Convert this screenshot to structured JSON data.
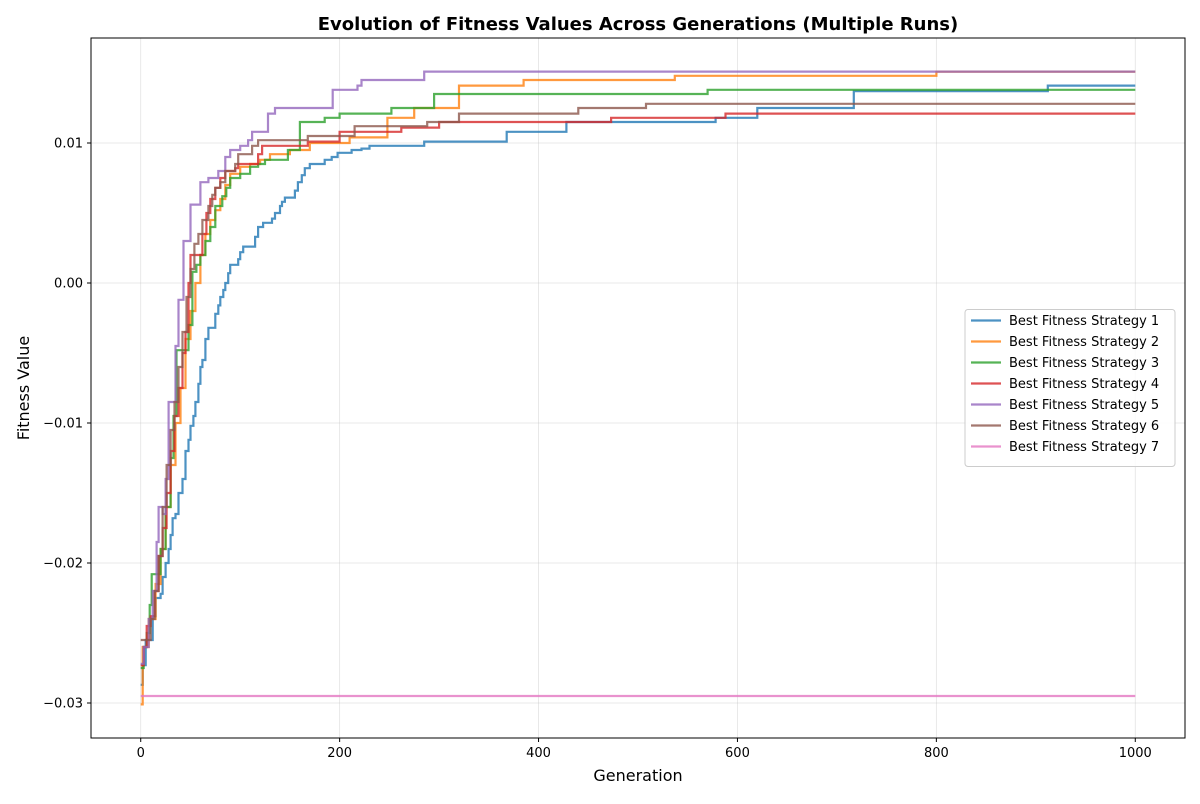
{
  "chart_data": {
    "type": "line",
    "title": "Evolution of Fitness Values Across Generations (Multiple Runs)",
    "xlabel": "Generation",
    "ylabel": "Fitness Value",
    "xlim": [
      -50,
      1050
    ],
    "ylim": [
      -0.0325,
      0.0175
    ],
    "xticks": [
      0,
      200,
      400,
      600,
      800,
      1000
    ],
    "xtick_labels": [
      "0",
      "200",
      "400",
      "600",
      "800",
      "1000"
    ],
    "yticks": [
      -0.03,
      -0.02,
      -0.01,
      0.0,
      0.01
    ],
    "ytick_labels": [
      "−0.03",
      "−0.02",
      "−0.01",
      "0.00",
      "0.01"
    ],
    "grid": true,
    "legend_position": "center-right",
    "series": [
      {
        "name": "Best Fitness Strategy 1",
        "color": "#1f77b4",
        "points": [
          [
            0,
            -0.0287
          ],
          [
            2,
            -0.0273
          ],
          [
            5,
            -0.0255
          ],
          [
            10,
            -0.0255
          ],
          [
            12,
            -0.0238
          ],
          [
            15,
            -0.0225
          ],
          [
            20,
            -0.0222
          ],
          [
            22,
            -0.021
          ],
          [
            25,
            -0.02
          ],
          [
            28,
            -0.019
          ],
          [
            30,
            -0.018
          ],
          [
            32,
            -0.0168
          ],
          [
            35,
            -0.0165
          ],
          [
            38,
            -0.015
          ],
          [
            42,
            -0.014
          ],
          [
            45,
            -0.012
          ],
          [
            48,
            -0.0112
          ],
          [
            50,
            -0.0102
          ],
          [
            53,
            -0.0095
          ],
          [
            55,
            -0.0085
          ],
          [
            58,
            -0.0072
          ],
          [
            60,
            -0.006
          ],
          [
            62,
            -0.0055
          ],
          [
            65,
            -0.004
          ],
          [
            68,
            -0.0032
          ],
          [
            72,
            -0.0032
          ],
          [
            75,
            -0.0022
          ],
          [
            78,
            -0.0016
          ],
          [
            80,
            -0.001
          ],
          [
            83,
            -0.0005
          ],
          [
            85,
            0.0
          ],
          [
            88,
            0.0007
          ],
          [
            90,
            0.0013
          ],
          [
            98,
            0.0017
          ],
          [
            100,
            0.0022
          ],
          [
            103,
            0.0026
          ],
          [
            112,
            0.0026
          ],
          [
            115,
            0.0033
          ],
          [
            118,
            0.004
          ],
          [
            123,
            0.0043
          ],
          [
            132,
            0.0046
          ],
          [
            135,
            0.005
          ],
          [
            140,
            0.0055
          ],
          [
            142,
            0.0058
          ],
          [
            145,
            0.0061
          ],
          [
            152,
            0.0061
          ],
          [
            155,
            0.0066
          ],
          [
            158,
            0.0072
          ],
          [
            162,
            0.0077
          ],
          [
            165,
            0.0082
          ],
          [
            170,
            0.0085
          ],
          [
            182,
            0.0085
          ],
          [
            185,
            0.0088
          ],
          [
            192,
            0.009
          ],
          [
            198,
            0.0093
          ],
          [
            212,
            0.0095
          ],
          [
            222,
            0.0096
          ],
          [
            230,
            0.0098
          ],
          [
            285,
            0.0101
          ],
          [
            365,
            0.0101
          ],
          [
            368,
            0.0108
          ],
          [
            425,
            0.0108
          ],
          [
            428,
            0.0115
          ],
          [
            575,
            0.0115
          ],
          [
            578,
            0.0118
          ],
          [
            618,
            0.0118
          ],
          [
            620,
            0.0125
          ],
          [
            715,
            0.0125
          ],
          [
            717,
            0.0137
          ],
          [
            910,
            0.0137
          ],
          [
            912,
            0.0141
          ],
          [
            1000,
            0.0141
          ]
        ]
      },
      {
        "name": "Best Fitness Strategy 2",
        "color": "#ff7f0e",
        "points": [
          [
            0,
            -0.0301
          ],
          [
            2,
            -0.026
          ],
          [
            8,
            -0.024
          ],
          [
            15,
            -0.0215
          ],
          [
            20,
            -0.019
          ],
          [
            25,
            -0.016
          ],
          [
            30,
            -0.013
          ],
          [
            35,
            -0.01
          ],
          [
            40,
            -0.0075
          ],
          [
            45,
            -0.004
          ],
          [
            50,
            -0.002
          ],
          [
            55,
            0.0
          ],
          [
            60,
            0.002
          ],
          [
            65,
            0.0035
          ],
          [
            70,
            0.0045
          ],
          [
            75,
            0.0052
          ],
          [
            80,
            0.006
          ],
          [
            85,
            0.007
          ],
          [
            90,
            0.0078
          ],
          [
            100,
            0.0083
          ],
          [
            110,
            0.0085
          ],
          [
            120,
            0.0088
          ],
          [
            130,
            0.0092
          ],
          [
            140,
            0.0092
          ],
          [
            150,
            0.0095
          ],
          [
            165,
            0.0095
          ],
          [
            170,
            0.01
          ],
          [
            210,
            0.0104
          ],
          [
            245,
            0.0104
          ],
          [
            248,
            0.0118
          ],
          [
            272,
            0.0118
          ],
          [
            275,
            0.0125
          ],
          [
            318,
            0.0125
          ],
          [
            320,
            0.0141
          ],
          [
            383,
            0.0141
          ],
          [
            385,
            0.0145
          ],
          [
            535,
            0.0145
          ],
          [
            537,
            0.0148
          ],
          [
            798,
            0.0148
          ],
          [
            800,
            0.0151
          ],
          [
            1000,
            0.0151
          ]
        ]
      },
      {
        "name": "Best Fitness Strategy 3",
        "color": "#2ca02c",
        "points": [
          [
            0,
            -0.0275
          ],
          [
            3,
            -0.026
          ],
          [
            6,
            -0.025
          ],
          [
            9,
            -0.023
          ],
          [
            11,
            -0.0208
          ],
          [
            18,
            -0.0208
          ],
          [
            20,
            -0.019
          ],
          [
            25,
            -0.016
          ],
          [
            30,
            -0.0125
          ],
          [
            33,
            -0.0095
          ],
          [
            36,
            -0.0048
          ],
          [
            45,
            -0.0048
          ],
          [
            48,
            -0.003
          ],
          [
            52,
            0.0008
          ],
          [
            56,
            0.0013
          ],
          [
            60,
            0.002
          ],
          [
            65,
            0.003
          ],
          [
            70,
            0.004
          ],
          [
            75,
            0.0055
          ],
          [
            82,
            0.0062
          ],
          [
            86,
            0.0068
          ],
          [
            90,
            0.0075
          ],
          [
            100,
            0.0078
          ],
          [
            110,
            0.0083
          ],
          [
            118,
            0.0085
          ],
          [
            125,
            0.0088
          ],
          [
            145,
            0.0088
          ],
          [
            148,
            0.0095
          ],
          [
            158,
            0.0095
          ],
          [
            160,
            0.0115
          ],
          [
            182,
            0.0115
          ],
          [
            185,
            0.0118
          ],
          [
            198,
            0.0118
          ],
          [
            200,
            0.0121
          ],
          [
            250,
            0.0121
          ],
          [
            252,
            0.0125
          ],
          [
            292,
            0.0125
          ],
          [
            295,
            0.0135
          ],
          [
            568,
            0.0135
          ],
          [
            570,
            0.0138
          ],
          [
            1000,
            0.0138
          ]
        ]
      },
      {
        "name": "Best Fitness Strategy 4",
        "color": "#d62728",
        "points": [
          [
            0,
            -0.0273
          ],
          [
            3,
            -0.026
          ],
          [
            6,
            -0.0245
          ],
          [
            10,
            -0.0238
          ],
          [
            14,
            -0.022
          ],
          [
            18,
            -0.0195
          ],
          [
            22,
            -0.0175
          ],
          [
            26,
            -0.015
          ],
          [
            30,
            -0.012
          ],
          [
            34,
            -0.0095
          ],
          [
            38,
            -0.0075
          ],
          [
            42,
            -0.005
          ],
          [
            45,
            -0.0035
          ],
          [
            48,
            0.0
          ],
          [
            50,
            0.002
          ],
          [
            58,
            0.002
          ],
          [
            62,
            0.0035
          ],
          [
            66,
            0.005
          ],
          [
            70,
            0.006
          ],
          [
            75,
            0.0068
          ],
          [
            80,
            0.0075
          ],
          [
            85,
            0.008
          ],
          [
            95,
            0.0082
          ],
          [
            98,
            0.0085
          ],
          [
            115,
            0.0085
          ],
          [
            118,
            0.0092
          ],
          [
            122,
            0.0098
          ],
          [
            165,
            0.0098
          ],
          [
            168,
            0.0101
          ],
          [
            198,
            0.0101
          ],
          [
            200,
            0.0108
          ],
          [
            260,
            0.0108
          ],
          [
            262,
            0.0111
          ],
          [
            298,
            0.0111
          ],
          [
            300,
            0.0115
          ],
          [
            470,
            0.0115
          ],
          [
            473,
            0.0118
          ],
          [
            585,
            0.0118
          ],
          [
            588,
            0.0121
          ],
          [
            1000,
            0.0121
          ]
        ]
      },
      {
        "name": "Best Fitness Strategy 5",
        "color": "#9467bd",
        "points": [
          [
            0,
            -0.0272
          ],
          [
            3,
            -0.026
          ],
          [
            8,
            -0.024
          ],
          [
            12,
            -0.022
          ],
          [
            16,
            -0.0185
          ],
          [
            18,
            -0.016
          ],
          [
            22,
            -0.0165
          ],
          [
            25,
            -0.014
          ],
          [
            28,
            -0.0085
          ],
          [
            32,
            -0.0085
          ],
          [
            35,
            -0.0045
          ],
          [
            38,
            -0.0012
          ],
          [
            41,
            -0.0012
          ],
          [
            43,
            0.003
          ],
          [
            48,
            0.003
          ],
          [
            50,
            0.0056
          ],
          [
            55,
            0.0056
          ],
          [
            60,
            0.0072
          ],
          [
            68,
            0.0075
          ],
          [
            75,
            0.0075
          ],
          [
            78,
            0.008
          ],
          [
            85,
            0.009
          ],
          [
            90,
            0.0095
          ],
          [
            100,
            0.0098
          ],
          [
            108,
            0.0102
          ],
          [
            112,
            0.0108
          ],
          [
            125,
            0.0108
          ],
          [
            128,
            0.0121
          ],
          [
            135,
            0.0125
          ],
          [
            190,
            0.0125
          ],
          [
            193,
            0.0138
          ],
          [
            215,
            0.0138
          ],
          [
            218,
            0.0141
          ],
          [
            222,
            0.0145
          ],
          [
            282,
            0.0145
          ],
          [
            285,
            0.0151
          ],
          [
            1000,
            0.0151
          ]
        ]
      },
      {
        "name": "Best Fitness Strategy 6",
        "color": "#8c564b",
        "points": [
          [
            0,
            -0.0255
          ],
          [
            5,
            -0.0255
          ],
          [
            10,
            -0.024
          ],
          [
            14,
            -0.022
          ],
          [
            18,
            -0.0195
          ],
          [
            22,
            -0.016
          ],
          [
            26,
            -0.013
          ],
          [
            30,
            -0.0105
          ],
          [
            34,
            -0.0085
          ],
          [
            38,
            -0.006
          ],
          [
            42,
            -0.0035
          ],
          [
            46,
            -0.001
          ],
          [
            50,
            0.001
          ],
          [
            54,
            0.0028
          ],
          [
            58,
            0.0035
          ],
          [
            62,
            0.0045
          ],
          [
            68,
            0.0055
          ],
          [
            72,
            0.0063
          ],
          [
            75,
            0.0068
          ],
          [
            80,
            0.0072
          ],
          [
            85,
            0.008
          ],
          [
            95,
            0.0085
          ],
          [
            98,
            0.0092
          ],
          [
            108,
            0.0092
          ],
          [
            112,
            0.0098
          ],
          [
            118,
            0.0102
          ],
          [
            165,
            0.0102
          ],
          [
            168,
            0.0105
          ],
          [
            212,
            0.0105
          ],
          [
            215,
            0.0112
          ],
          [
            285,
            0.0112
          ],
          [
            288,
            0.0115
          ],
          [
            318,
            0.0115
          ],
          [
            320,
            0.0121
          ],
          [
            438,
            0.0121
          ],
          [
            440,
            0.0125
          ],
          [
            505,
            0.0125
          ],
          [
            508,
            0.0128
          ],
          [
            1000,
            0.0128
          ]
        ]
      },
      {
        "name": "Best Fitness Strategy 7",
        "color": "#e377c2",
        "points": [
          [
            0,
            -0.0295
          ],
          [
            1000,
            -0.0295
          ]
        ]
      }
    ]
  }
}
